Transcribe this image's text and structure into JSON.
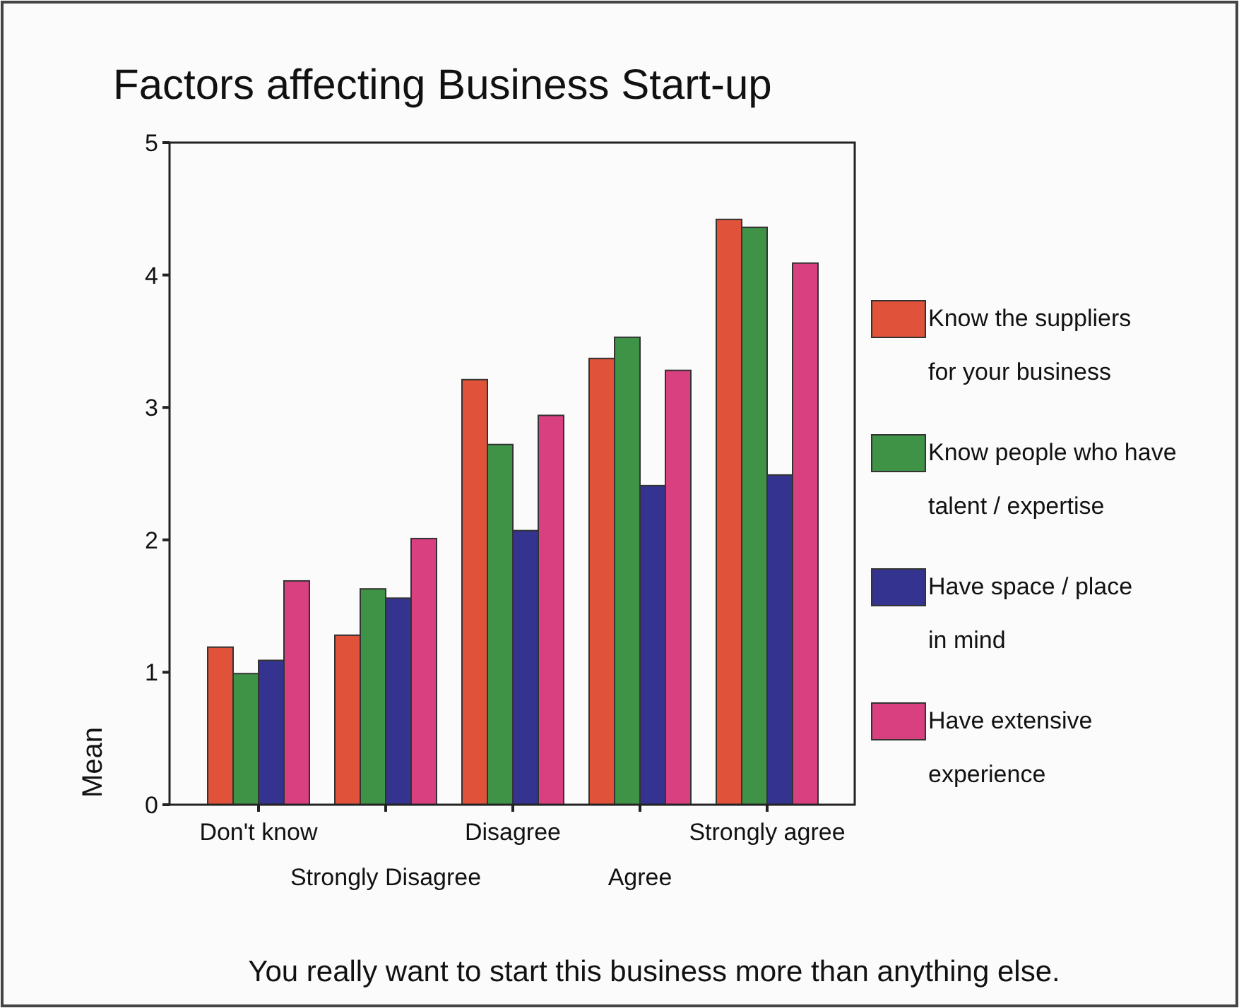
{
  "chart_data": {
    "type": "bar",
    "title": "Factors affecting Business Start-up",
    "xlabel": "You really want to start this business more than anything else.",
    "ylabel": "Mean",
    "categories": [
      "Don't know",
      "Strongly Disagree",
      "Disagree",
      "Agree",
      "Strongly agree"
    ],
    "series": [
      {
        "name": "Know the suppliers for your business",
        "color": "#e0533a",
        "values": [
          1.19,
          1.28,
          3.21,
          3.37,
          4.42
        ]
      },
      {
        "name": "Know people who have talent / expertise",
        "color": "#3f9347",
        "values": [
          0.99,
          1.63,
          2.72,
          3.53,
          4.36
        ]
      },
      {
        "name": "Have space / place in mind",
        "color": "#34338f",
        "values": [
          1.09,
          1.56,
          2.07,
          2.41,
          2.49
        ]
      },
      {
        "name": "Have extensive experience",
        "color": "#d8407f",
        "values": [
          1.69,
          2.01,
          2.94,
          3.28,
          4.09
        ]
      }
    ],
    "ylim": [
      0,
      5
    ],
    "yticks": [
      0,
      1,
      2,
      3,
      4,
      5
    ],
    "grid": false,
    "legend": "right"
  }
}
